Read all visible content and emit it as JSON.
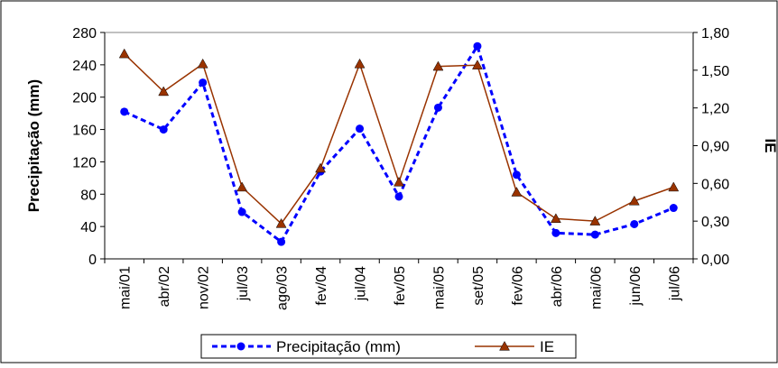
{
  "chart_data": {
    "type": "line",
    "categories": [
      "mai/01",
      "abr/02",
      "nov/02",
      "jul/03",
      "ago/03",
      "fev/04",
      "jul/04",
      "fev/05",
      "mai/05",
      "set/05",
      "fev/06",
      "abr/06",
      "mai/06",
      "jun/06",
      "jul/06"
    ],
    "ylabel": "Precipitação (mm)",
    "y2label": "IE",
    "ylim": [
      0,
      280
    ],
    "y2lim": [
      0,
      1.8
    ],
    "yticks": [
      "0",
      "40",
      "80",
      "120",
      "160",
      "200",
      "240",
      "280"
    ],
    "y2ticks": [
      "0,00",
      "0,30",
      "0,60",
      "0,90",
      "1,20",
      "1,50",
      "1,80"
    ],
    "grid": false,
    "legend_position": "bottom",
    "series": [
      {
        "name": "Precipitação (mm)",
        "axis": "left",
        "color": "#0000ff",
        "style": "dotted",
        "marker": "circle",
        "values": [
          182,
          160,
          218,
          58,
          21,
          108,
          161,
          77,
          187,
          263,
          104,
          32,
          30,
          43,
          63
        ]
      },
      {
        "name": "IE",
        "axis": "right",
        "color": "#993300",
        "style": "solid",
        "marker": "triangle",
        "values": [
          1.63,
          1.33,
          1.55,
          0.57,
          0.28,
          0.72,
          1.55,
          0.61,
          1.53,
          1.54,
          0.53,
          0.32,
          0.3,
          0.46,
          0.57
        ]
      }
    ]
  }
}
